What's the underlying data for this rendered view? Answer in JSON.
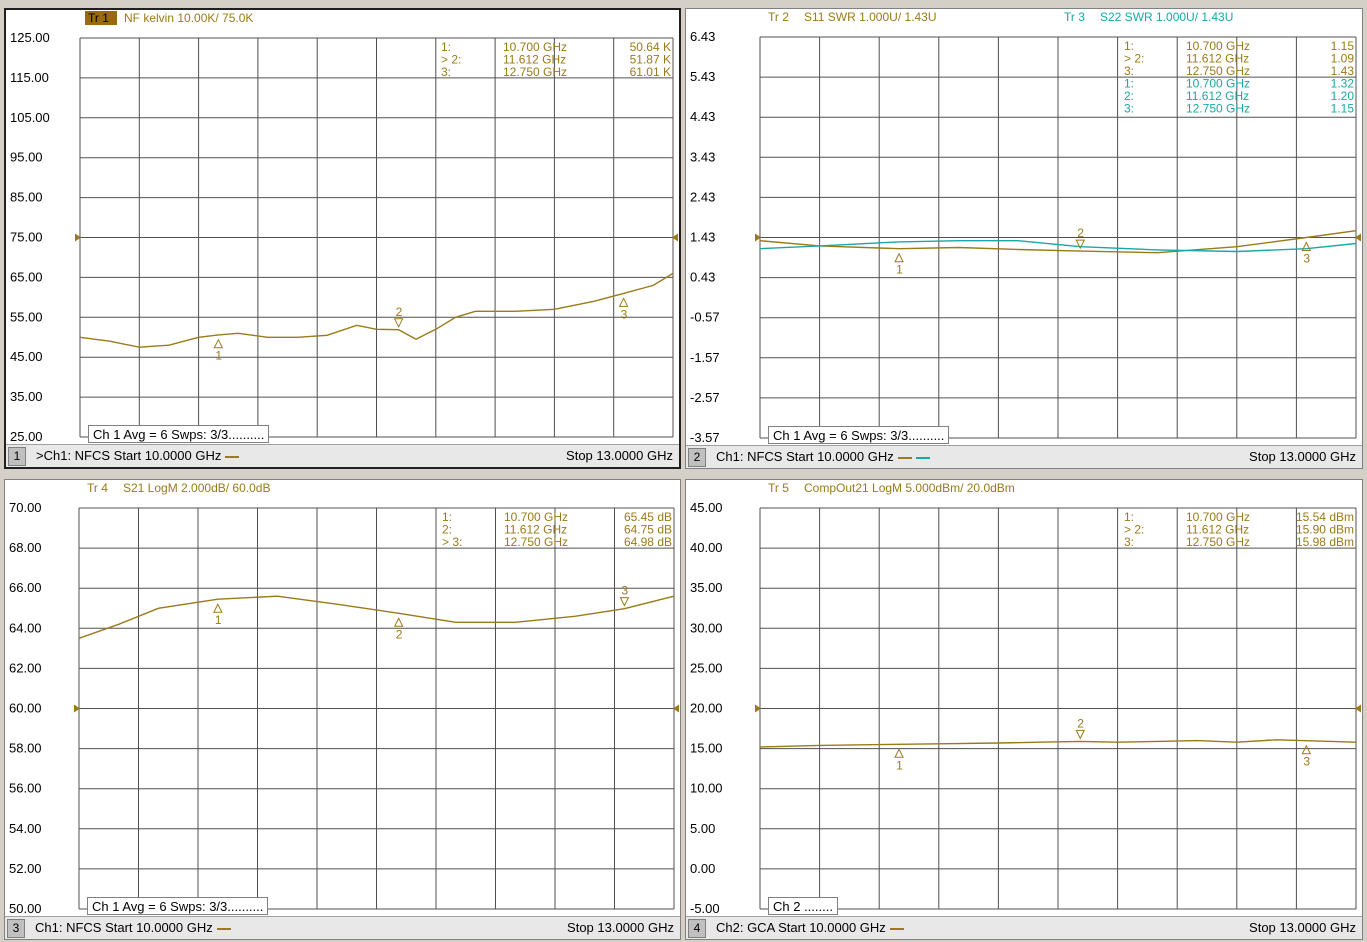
{
  "line_color": "#9a7a1a",
  "line_color2": "#1ba7a7",
  "panes": [
    {
      "num": "1",
      "trace_tags": [
        {
          "tag": "Tr 1",
          "text": "NF kelvin 10.00K/ 75.0K",
          "color": "#9a7a1a",
          "highlight": true
        }
      ],
      "status": "Ch 1 Avg =     6 Swps: 3/3..........",
      "channel": ">Ch1: NFCS  Start 10.0000 GHz",
      "swatches": [
        "#9a7a1a"
      ],
      "stop": "Stop 13.0000 GHz",
      "markers_table": [
        {
          "color": "#9a7a1a",
          "rows": [
            {
              "id": "1:",
              "freq": "10.700 GHz",
              "val": "50.64 K"
            },
            {
              "id": "> 2:",
              "freq": "11.612 GHz",
              "val": "51.87 K"
            },
            {
              "id": "3:",
              "freq": "12.750 GHz",
              "val": "61.01 K"
            }
          ]
        }
      ]
    },
    {
      "num": "2",
      "trace_tags": [
        {
          "tag": "Tr 2",
          "text": "S11 SWR 1.000U/ 1.43U",
          "color": "#9a7a1a",
          "highlight": false
        },
        {
          "tag": "Tr 3",
          "text": "S22 SWR 1.000U/ 1.43U",
          "color": "#1ba7a7",
          "highlight": false
        }
      ],
      "status": "Ch 1 Avg =     6 Swps: 3/3..........",
      "channel": "Ch1: NFCS  Start 10.0000 GHz",
      "swatches": [
        "#9a7a1a",
        "#1ba7a7"
      ],
      "stop": "Stop 13.0000 GHz",
      "markers_table": [
        {
          "color": "#9a7a1a",
          "rows": [
            {
              "id": "1:",
              "freq": "10.700 GHz",
              "val": "1.15"
            },
            {
              "id": "> 2:",
              "freq": "11.612 GHz",
              "val": "1.09"
            },
            {
              "id": "3:",
              "freq": "12.750 GHz",
              "val": "1.43"
            }
          ]
        },
        {
          "color": "#1ba7a7",
          "rows": [
            {
              "id": "1:",
              "freq": "10.700 GHz",
              "val": "1.32"
            },
            {
              "id": "2:",
              "freq": "11.612 GHz",
              "val": "1.20"
            },
            {
              "id": "3:",
              "freq": "12.750 GHz",
              "val": "1.15"
            }
          ]
        }
      ]
    },
    {
      "num": "3",
      "trace_tags": [
        {
          "tag": "Tr 4",
          "text": "S21 LogM 2.000dB/ 60.0dB",
          "color": "#9a7a1a",
          "highlight": false
        }
      ],
      "status": "Ch 1 Avg =     6 Swps: 3/3..........",
      "channel": "Ch1: NFCS  Start 10.0000 GHz",
      "swatches": [
        "#9a7a1a"
      ],
      "stop": "Stop 13.0000 GHz",
      "markers_table": [
        {
          "color": "#9a7a1a",
          "rows": [
            {
              "id": "1:",
              "freq": "10.700 GHz",
              "val": "65.45 dB"
            },
            {
              "id": "2:",
              "freq": "11.612 GHz",
              "val": "64.75 dB"
            },
            {
              "id": "> 3:",
              "freq": "12.750 GHz",
              "val": "64.98 dB"
            }
          ]
        }
      ]
    },
    {
      "num": "4",
      "trace_tags": [
        {
          "tag": "Tr 5",
          "text": "CompOut21 LogM 5.000dBm/ 20.0dBm",
          "color": "#9a7a1a",
          "highlight": false
        }
      ],
      "status": "Ch 2 ........",
      "channel": "Ch2: GCA  Start 10.0000 GHz",
      "swatches": [
        "#9a7a1a"
      ],
      "stop": "Stop 13.0000 GHz",
      "markers_table": [
        {
          "color": "#9a7a1a",
          "rows": [
            {
              "id": "1:",
              "freq": "10.700 GHz",
              "val": "15.54 dBm"
            },
            {
              "id": "> 2:",
              "freq": "11.612 GHz",
              "val": "15.90 dBm"
            },
            {
              "id": "3:",
              "freq": "12.750 GHz",
              "val": "15.98 dBm"
            }
          ]
        }
      ]
    }
  ],
  "chart_data": [
    {
      "type": "line",
      "xlim": [
        10.0,
        13.0
      ],
      "ylim": [
        25.0,
        125.0
      ],
      "ytick_labels": [
        "125.00",
        "115.00",
        "105.00",
        "95.00",
        "85.00",
        "75.00",
        "65.00",
        "55.00",
        "45.00",
        "35.00",
        "25.00"
      ],
      "ref_value": 75.0,
      "series": [
        {
          "color": "#9a7a1a",
          "x": [
            10.0,
            10.15,
            10.3,
            10.45,
            10.6,
            10.7,
            10.8,
            10.95,
            11.1,
            11.25,
            11.4,
            11.5,
            11.612,
            11.7,
            11.8,
            11.9,
            12.0,
            12.2,
            12.4,
            12.6,
            12.75,
            12.9,
            13.0
          ],
          "y": [
            50,
            49,
            47.5,
            48,
            50,
            50.6,
            51,
            50,
            50,
            50.5,
            53,
            52,
            51.9,
            49.5,
            52,
            55,
            56.5,
            56.5,
            57,
            59,
            61,
            63,
            66
          ]
        }
      ],
      "markers": [
        {
          "label": "1",
          "x": 10.7,
          "y": 50.64,
          "dir": "up"
        },
        {
          "label": "2",
          "x": 11.612,
          "y": 51.87,
          "dir": "down"
        },
        {
          "label": "3",
          "x": 12.75,
          "y": 61.01,
          "dir": "up"
        }
      ]
    },
    {
      "type": "line",
      "xlim": [
        10.0,
        13.0
      ],
      "ylim": [
        -3.57,
        6.43
      ],
      "ytick_labels": [
        "6.43",
        "5.43",
        "4.43",
        "3.43",
        "2.43",
        "1.43",
        "0.43",
        "-0.57",
        "-1.57",
        "-2.57",
        "-3.57"
      ],
      "ref_value": 1.43,
      "series": [
        {
          "color": "#9a7a1a",
          "x": [
            10.0,
            10.3,
            10.7,
            11.0,
            11.3,
            11.612,
            12.0,
            12.4,
            12.75,
            13.0
          ],
          "y": [
            1.35,
            1.22,
            1.15,
            1.18,
            1.13,
            1.09,
            1.05,
            1.2,
            1.43,
            1.6
          ]
        },
        {
          "color": "#1ba7a7",
          "x": [
            10.0,
            10.3,
            10.7,
            11.0,
            11.3,
            11.612,
            12.0,
            12.4,
            12.75,
            13.0
          ],
          "y": [
            1.15,
            1.22,
            1.32,
            1.35,
            1.35,
            1.2,
            1.12,
            1.08,
            1.15,
            1.28
          ]
        }
      ],
      "markers": [
        {
          "label": "1",
          "x": 10.7,
          "y": 1.15,
          "dir": "up"
        },
        {
          "label": "2",
          "x": 11.612,
          "y": 1.09,
          "dir": "down"
        },
        {
          "label": "3",
          "x": 12.75,
          "y": 1.43,
          "dir": "up"
        }
      ]
    },
    {
      "type": "line",
      "xlim": [
        10.0,
        13.0
      ],
      "ylim": [
        50.0,
        70.0
      ],
      "ytick_labels": [
        "70.00",
        "68.00",
        "66.00",
        "64.00",
        "62.00",
        "60.00",
        "58.00",
        "56.00",
        "54.00",
        "52.00",
        "50.00"
      ],
      "ref_value": 60.0,
      "series": [
        {
          "color": "#9a7a1a",
          "x": [
            10.0,
            10.2,
            10.4,
            10.7,
            11.0,
            11.3,
            11.612,
            11.9,
            12.2,
            12.5,
            12.75,
            13.0
          ],
          "y": [
            63.5,
            64.2,
            65.0,
            65.45,
            65.6,
            65.2,
            64.75,
            64.3,
            64.3,
            64.6,
            64.98,
            65.6
          ]
        }
      ],
      "markers": [
        {
          "label": "1",
          "x": 10.7,
          "y": 65.45,
          "dir": "up"
        },
        {
          "label": "2",
          "x": 11.612,
          "y": 64.75,
          "dir": "up"
        },
        {
          "label": "3",
          "x": 12.75,
          "y": 64.98,
          "dir": "down"
        }
      ]
    },
    {
      "type": "line",
      "xlim": [
        10.0,
        13.0
      ],
      "ylim": [
        -5.0,
        45.0
      ],
      "ytick_labels": [
        "45.00",
        "40.00",
        "35.00",
        "30.00",
        "25.00",
        "20.00",
        "15.00",
        "10.00",
        "5.00",
        "0.00",
        "-5.00"
      ],
      "ref_value": 20.0,
      "series": [
        {
          "color": "#9a7a1a",
          "x": [
            10.0,
            10.3,
            10.6,
            10.9,
            11.2,
            11.4,
            11.612,
            11.8,
            12.0,
            12.2,
            12.4,
            12.6,
            12.75,
            13.0
          ],
          "y": [
            15.2,
            15.4,
            15.5,
            15.6,
            15.7,
            15.8,
            15.9,
            15.8,
            15.9,
            16.0,
            15.8,
            16.1,
            15.98,
            15.8
          ]
        }
      ],
      "markers": [
        {
          "label": "1",
          "x": 10.7,
          "y": 15.54,
          "dir": "up"
        },
        {
          "label": "2",
          "x": 11.612,
          "y": 15.9,
          "dir": "down"
        },
        {
          "label": "3",
          "x": 12.75,
          "y": 15.98,
          "dir": "up"
        }
      ]
    }
  ]
}
